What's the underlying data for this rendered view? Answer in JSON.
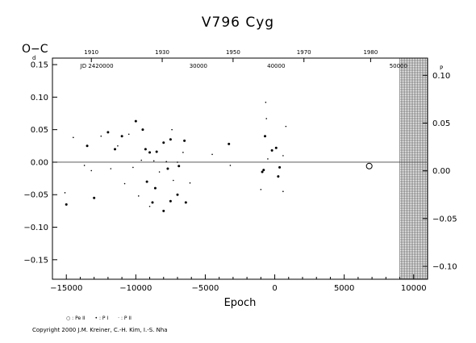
{
  "chart_data": {
    "type": "scatter",
    "title": "V796  Cyg",
    "ylabel": "O−C",
    "y_unit": "d",
    "y_unit_right": "P",
    "xlabel": "Epoch",
    "xlim": [
      -16000,
      11000
    ],
    "ylim": [
      -0.18,
      0.16
    ],
    "y_right_lim": [
      -0.1135,
      0.118
    ],
    "x_ticks": [
      -15000,
      -10000,
      -5000,
      0,
      5000,
      10000
    ],
    "x_tick_labels": [
      "−15000",
      "−10000",
      "−5000",
      "0",
      "5000",
      "10000"
    ],
    "y_ticks": [
      0.15,
      0.1,
      0.05,
      0.0,
      -0.05,
      -0.1,
      -0.15
    ],
    "y_tick_labels": [
      "0.15",
      "0.10",
      "0.05",
      "0.00",
      "−0.05",
      "−0.10",
      "−0.15"
    ],
    "y_right_ticks": [
      0.1,
      0.05,
      0.0,
      -0.05,
      -0.1
    ],
    "y_right_tick_labels": [
      "0.10",
      "0.05",
      "0.00",
      "−0.05",
      "−0.10"
    ],
    "top_year_ticks": [
      1910,
      1930,
      1950,
      1970,
      1980
    ],
    "top_year_positions": [
      -13200,
      -8100,
      -3000,
      2100,
      6900
    ],
    "top_jd_labels": [
      {
        "label": "JD 2420000",
        "x": -12800
      },
      {
        "label": "30000",
        "x": -5500
      },
      {
        "label": "40000",
        "x": 100
      },
      {
        "label": "50000",
        "x": 8900
      }
    ],
    "zero_line": 0.0,
    "hatched_region": [
      9000,
      11000
    ],
    "series": [
      {
        "name": "Pe II",
        "marker": "open-circle",
        "points": [
          [
            6800,
            -0.006
          ]
        ]
      },
      {
        "name": "P I",
        "marker": "dot",
        "points": [
          [
            -15000,
            -0.065
          ],
          [
            -13000,
            -0.055
          ],
          [
            -13500,
            0.025
          ],
          [
            -12000,
            0.046
          ],
          [
            -11000,
            0.04
          ],
          [
            -11500,
            0.02
          ],
          [
            -10000,
            0.063
          ],
          [
            -9500,
            0.05
          ],
          [
            -9300,
            0.02
          ],
          [
            -9000,
            0.015
          ],
          [
            -8500,
            0.016
          ],
          [
            -8000,
            0.03
          ],
          [
            -7500,
            0.035
          ],
          [
            -9200,
            -0.03
          ],
          [
            -8600,
            -0.04
          ],
          [
            -8000,
            -0.075
          ],
          [
            -7500,
            -0.06
          ],
          [
            -7000,
            -0.05
          ],
          [
            -7700,
            -0.01
          ],
          [
            -6500,
            0.033
          ],
          [
            -6400,
            -0.062
          ],
          [
            -3300,
            0.028
          ],
          [
            -700,
            0.04
          ],
          [
            -800,
            -0.012
          ],
          [
            -900,
            -0.015
          ],
          [
            100,
            0.022
          ],
          [
            350,
            -0.008
          ],
          [
            250,
            -0.022
          ],
          [
            -200,
            0.018
          ],
          [
            -8800,
            -0.062
          ],
          [
            -6900,
            -0.006
          ]
        ]
      },
      {
        "name": "P II",
        "marker": "small-dot",
        "points": [
          [
            -15100,
            -0.047
          ],
          [
            -14500,
            0.038
          ],
          [
            -13700,
            -0.005
          ],
          [
            -13200,
            -0.013
          ],
          [
            -12500,
            0.04
          ],
          [
            -11800,
            -0.01
          ],
          [
            -11300,
            0.025
          ],
          [
            -10500,
            0.043
          ],
          [
            -10200,
            -0.008
          ],
          [
            -9800,
            -0.052
          ],
          [
            -9600,
            0.003
          ],
          [
            -9000,
            -0.068
          ],
          [
            -8700,
            0.002
          ],
          [
            -8300,
            -0.015
          ],
          [
            -7800,
            0.001
          ],
          [
            -7400,
            0.05
          ],
          [
            -7300,
            -0.028
          ],
          [
            -7000,
            0.0
          ],
          [
            -6600,
            0.015
          ],
          [
            -6100,
            -0.032
          ],
          [
            -4500,
            0.012
          ],
          [
            -3200,
            -0.005
          ],
          [
            -1000,
            -0.042
          ],
          [
            -650,
            0.092
          ],
          [
            -600,
            0.067
          ],
          [
            -500,
            0.005
          ],
          [
            600,
            -0.045
          ],
          [
            800,
            0.055
          ],
          [
            600,
            0.01
          ],
          [
            -10800,
            -0.033
          ]
        ]
      }
    ]
  },
  "legend_labels": [
    "○ : Pe II",
    "• : P I",
    "· : P II"
  ],
  "copyright": "Copyright 2000 J.M. Kreiner, C.-H. Kim, I.-S. Nha"
}
